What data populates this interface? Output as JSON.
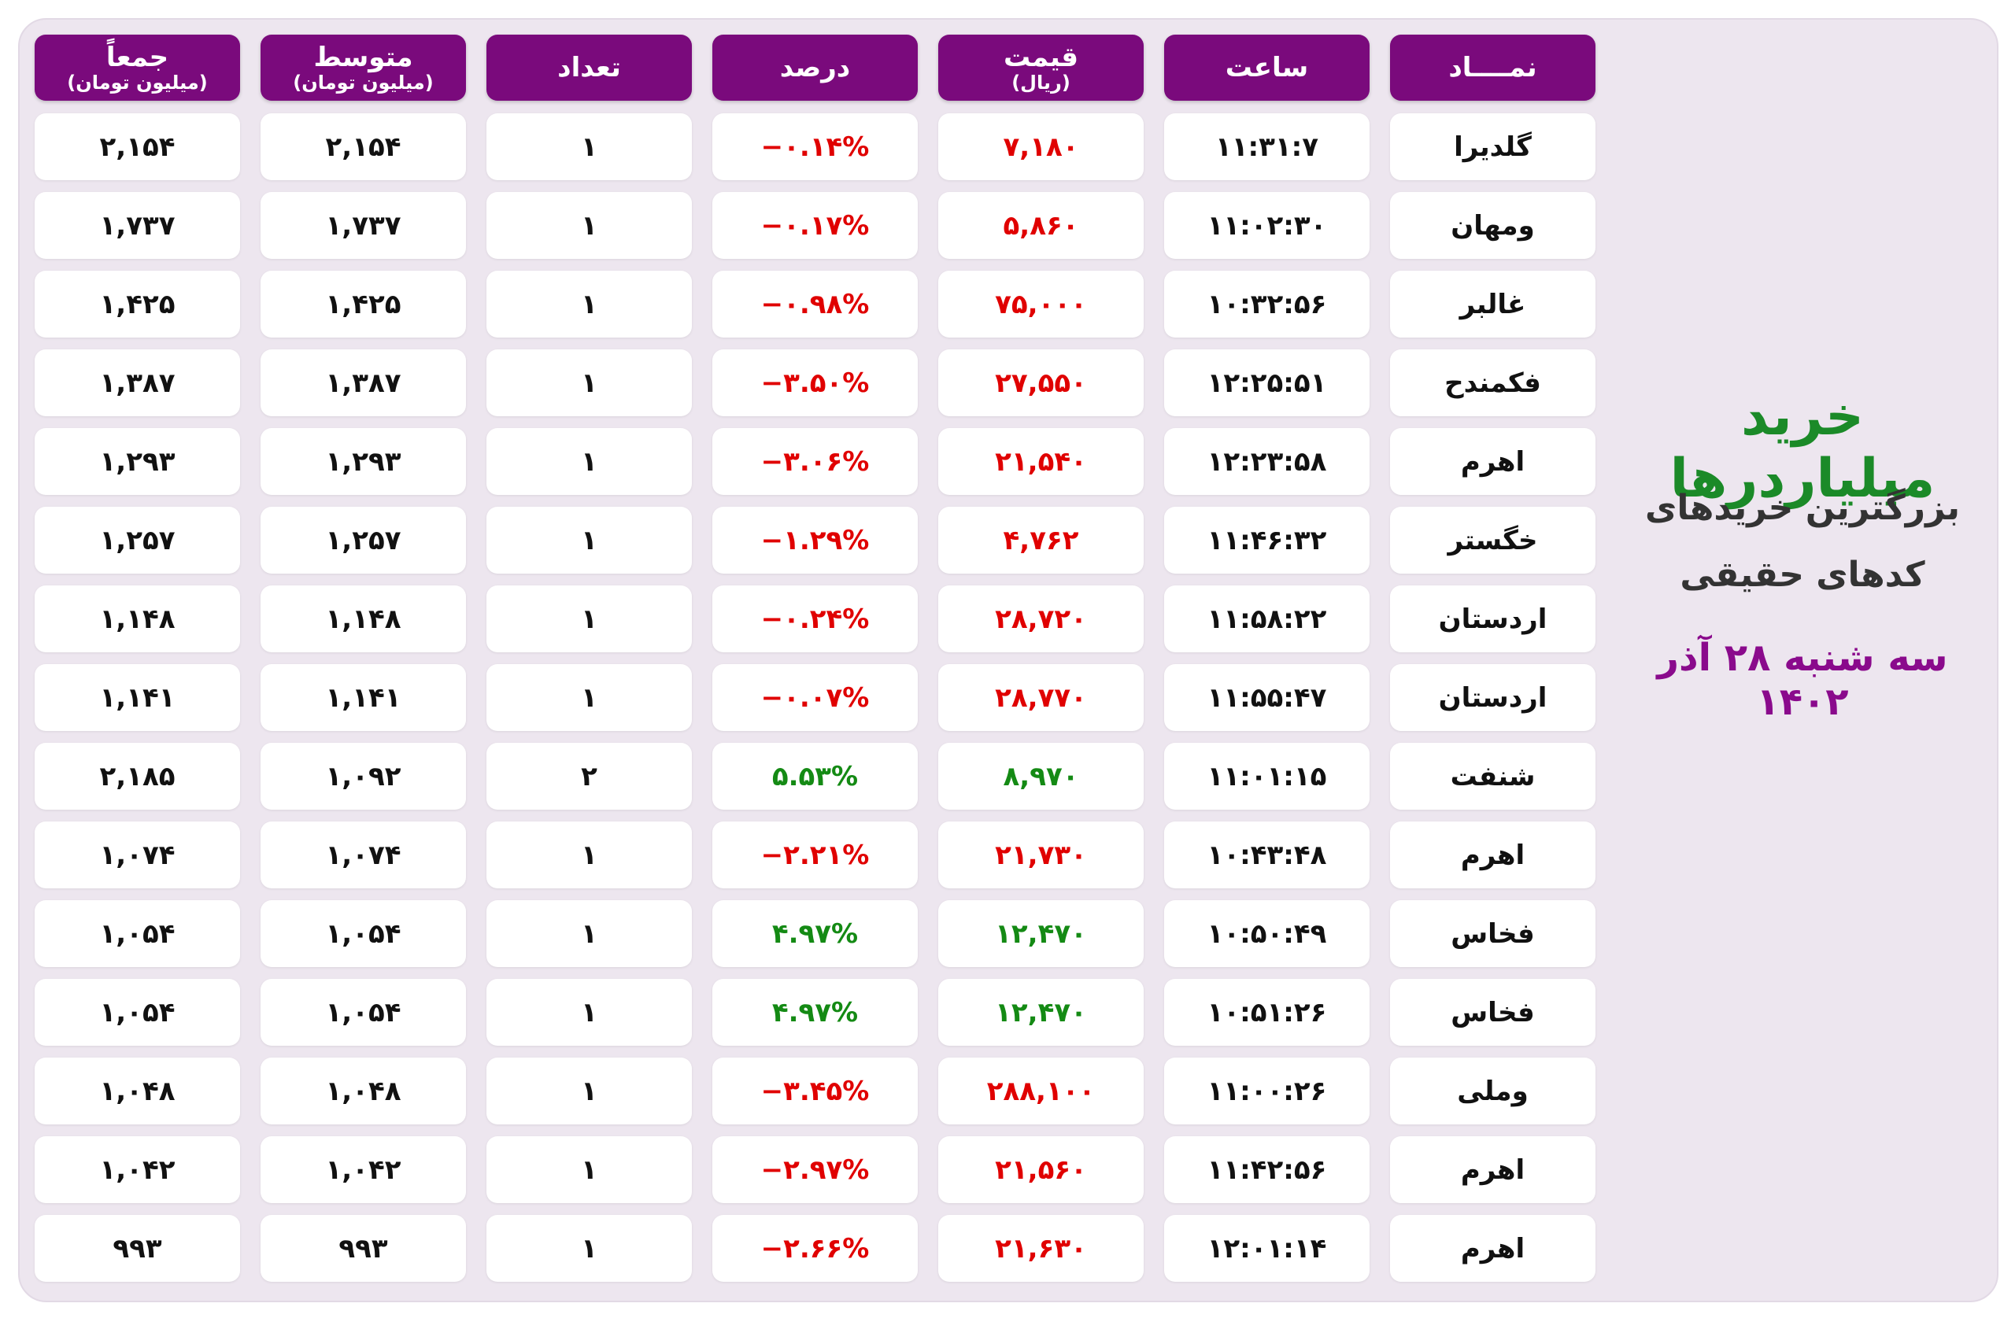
{
  "side": {
    "title": "خرید میلیاردرها",
    "subtitle_lines": [
      "بزرگترین خریدهای",
      "کدهای حقیقی"
    ],
    "date": "سه شنبه ۲۸ آذر ۱۴۰۲"
  },
  "table": {
    "headers": [
      {
        "title": "نمــــاد"
      },
      {
        "title": "ساعت"
      },
      {
        "title": "قیمت",
        "subtitle": "(ریال)"
      },
      {
        "title": "درصد"
      },
      {
        "title": "تعداد"
      },
      {
        "title": "متوسط",
        "subtitle": "(میلیون تومان)"
      },
      {
        "title": "جمعاً",
        "subtitle": "(میلیون تومان)"
      }
    ],
    "rows": [
      [
        "گلدیرا",
        "۱۱:۳۱:۷",
        "۷,۱۸۰",
        "−۰.۱۴%",
        "۱",
        "۲,۱۵۴",
        "۲,۱۵۴"
      ],
      [
        "ومهان",
        "۱۱:۰۲:۳۰",
        "۵,۸۶۰",
        "−۰.۱۷%",
        "۱",
        "۱,۷۳۷",
        "۱,۷۳۷"
      ],
      [
        "غالبر",
        "۱۰:۳۲:۵۶",
        "۷۵,۰۰۰",
        "−۰.۹۸%",
        "۱",
        "۱,۴۲۵",
        "۱,۴۲۵"
      ],
      [
        "فکمندح",
        "۱۲:۲۵:۵۱",
        "۲۷,۵۵۰",
        "−۳.۵۰%",
        "۱",
        "۱,۳۸۷",
        "۱,۳۸۷"
      ],
      [
        "اهرم",
        "۱۲:۲۳:۵۸",
        "۲۱,۵۴۰",
        "−۳.۰۶%",
        "۱",
        "۱,۲۹۳",
        "۱,۲۹۳"
      ],
      [
        "خگستر",
        "۱۱:۴۶:۳۲",
        "۴,۷۶۲",
        "−۱.۲۹%",
        "۱",
        "۱,۲۵۷",
        "۱,۲۵۷"
      ],
      [
        "اردستان",
        "۱۱:۵۸:۲۲",
        "۲۸,۷۲۰",
        "−۰.۲۴%",
        "۱",
        "۱,۱۴۸",
        "۱,۱۴۸"
      ],
      [
        "اردستان",
        "۱۱:۵۵:۴۷",
        "۲۸,۷۷۰",
        "−۰.۰۷%",
        "۱",
        "۱,۱۴۱",
        "۱,۱۴۱"
      ],
      [
        "شنفت",
        "۱۱:۰۱:۱۵",
        "۸,۹۷۰",
        "۵.۵۳%",
        "۲",
        "۱,۰۹۲",
        "۲,۱۸۵"
      ],
      [
        "اهرم",
        "۱۰:۴۳:۴۸",
        "۲۱,۷۳۰",
        "−۲.۲۱%",
        "۱",
        "۱,۰۷۴",
        "۱,۰۷۴"
      ],
      [
        "فخاس",
        "۱۰:۵۰:۴۹",
        "۱۲,۴۷۰",
        "۴.۹۷%",
        "۱",
        "۱,۰۵۴",
        "۱,۰۵۴"
      ],
      [
        "فخاس",
        "۱۰:۵۱:۲۶",
        "۱۲,۴۷۰",
        "۴.۹۷%",
        "۱",
        "۱,۰۵۴",
        "۱,۰۵۴"
      ],
      [
        "وملی",
        "۱۱:۰۰:۲۶",
        "۲۸۸,۱۰۰",
        "−۳.۴۵%",
        "۱",
        "۱,۰۴۸",
        "۱,۰۴۸"
      ],
      [
        "اهرم",
        "۱۱:۴۲:۵۶",
        "۲۱,۵۶۰",
        "−۲.۹۷%",
        "۱",
        "۱,۰۴۲",
        "۱,۰۴۲"
      ],
      [
        "اهرم",
        "۱۲:۰۱:۱۴",
        "۲۱,۶۳۰",
        "−۲.۶۶%",
        "۱",
        "۹۹۳",
        "۹۹۳"
      ]
    ]
  }
}
